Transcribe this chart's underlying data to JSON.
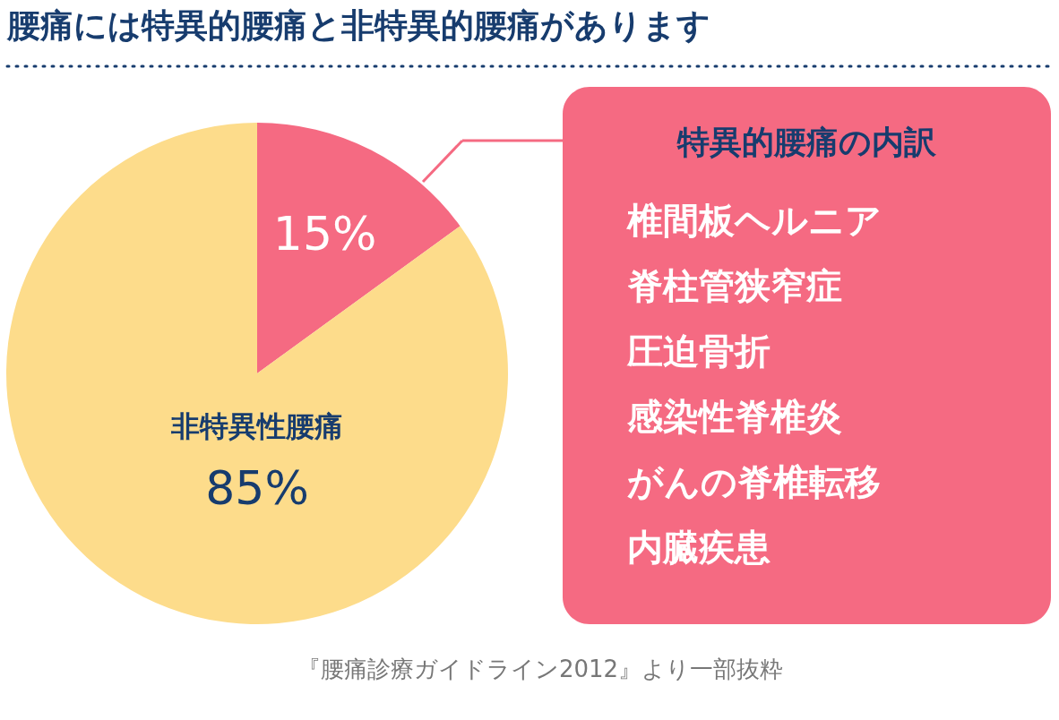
{
  "chart_data": {
    "type": "pie",
    "title": "腰痛には特異的腰痛と非特異的腰痛があります",
    "categories": [
      null,
      "非特異性腰痛"
    ],
    "values": [
      15,
      85
    ],
    "colors": [
      "#f56a82",
      "#fddc8b"
    ],
    "value_labels": [
      "15%",
      "85%"
    ],
    "annotations": [
      "特異的腰痛の内訳",
      "椎間板ヘルニア",
      "脊柱管狭窄症",
      "圧迫骨折",
      "感染性脊椎炎",
      "がんの脊椎転移",
      "内臓疾患",
      "『腰痛診療ガイドライン2012』より一部抜粋"
    ]
  }
}
